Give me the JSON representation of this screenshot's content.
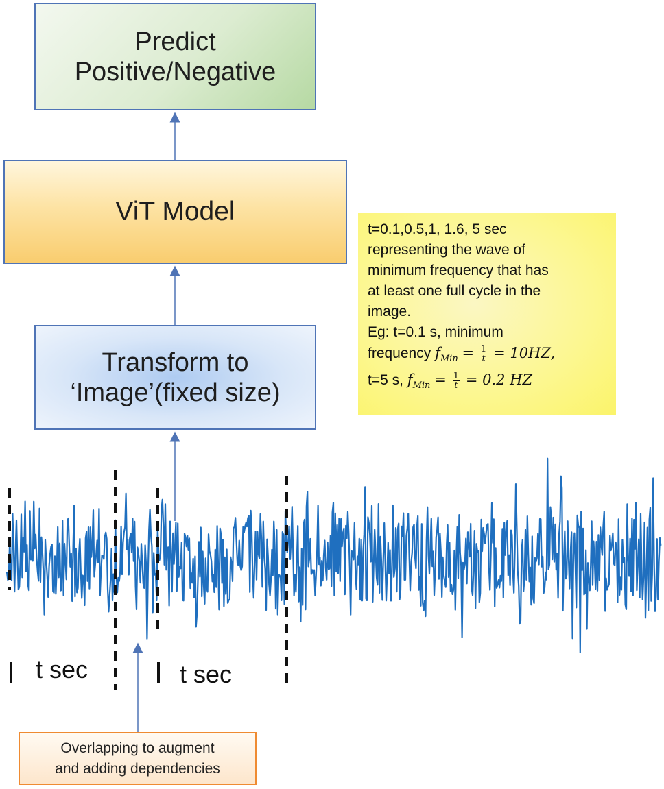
{
  "boxes": {
    "predict": "Predict\nPositive/Negative",
    "vit": "ViT Model",
    "transform": "Transform to\n‘Image’(fixed size)",
    "overlap": "Overlapping to augment\nand adding dependencies"
  },
  "note": {
    "line1": "t=0.1,0.5,1, 1.6, 5 sec",
    "line2": "representing the wave of",
    "line3": "minimum frequency that has",
    "line4": "at least one full cycle in the",
    "line5": "image.",
    "line6": "Eg: t=0.1 s, minimum",
    "line7_prefix": "frequency",
    "f_symbol": "f",
    "f_subscript": "Min",
    "eq": "=",
    "frac_num": "1",
    "frac_den": "t",
    "result1": "= 10HZ,",
    "line8_prefix": "t=5 s,",
    "result2": "= 0.2 HZ"
  },
  "labels": {
    "segment1": "t sec",
    "segment2": "t sec"
  },
  "colors": {
    "signal": "#1f6fbf",
    "arrow": "#4f74b6",
    "box_border": "#4f74b6",
    "note_bg": "#fcf78f",
    "overlap_border": "#ef8b32"
  }
}
